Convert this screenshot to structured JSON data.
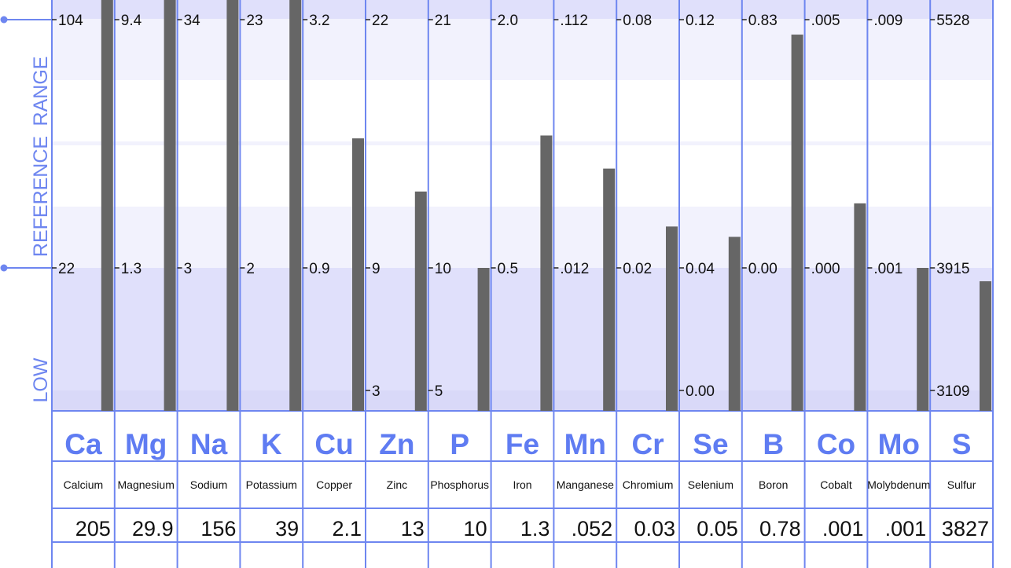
{
  "side_labels": {
    "low": "LOW",
    "reference": "REFERENCE",
    "range": "RANGE"
  },
  "colors": {
    "grid": "#6e86f0",
    "bar": "#666666",
    "symbol": "#5f7cf2",
    "band_low": "#e0e0fb",
    "band_light": "#f2f2fd",
    "band_white": "#ffffff"
  },
  "chart_data": {
    "type": "bar",
    "title": "",
    "xlabel": "",
    "ylabel": "",
    "elements": [
      {
        "symbol": "Ca",
        "name": "Calcium",
        "value": "205",
        "v": 205,
        "hi": "104",
        "hi_v": 104,
        "lo": "22",
        "lo_v": 22,
        "bottom": "",
        "bottom_v": null
      },
      {
        "symbol": "Mg",
        "name": "Magnesium",
        "value": "29.9",
        "v": 29.9,
        "hi": "9.4",
        "hi_v": 9.4,
        "lo": "1.3",
        "lo_v": 1.3,
        "bottom": "",
        "bottom_v": null
      },
      {
        "symbol": "Na",
        "name": "Sodium",
        "value": "156",
        "v": 156,
        "hi": "34",
        "hi_v": 34,
        "lo": "3",
        "lo_v": 3,
        "bottom": "",
        "bottom_v": null
      },
      {
        "symbol": "K",
        "name": "Potassium",
        "value": "39",
        "v": 39,
        "hi": "23",
        "hi_v": 23,
        "lo": "2",
        "lo_v": 2,
        "bottom": "",
        "bottom_v": null
      },
      {
        "symbol": "Cu",
        "name": "Copper",
        "value": "2.1",
        "v": 2.1,
        "hi": "3.2",
        "hi_v": 3.2,
        "lo": "0.9",
        "lo_v": 0.9,
        "bottom": "",
        "bottom_v": null
      },
      {
        "symbol": "Zn",
        "name": "Zinc",
        "value": "13",
        "v": 13,
        "hi": "22",
        "hi_v": 22,
        "lo": "9",
        "lo_v": 9,
        "bottom": "3",
        "bottom_v": 3
      },
      {
        "symbol": "P",
        "name": "Phosphorus",
        "value": "10",
        "v": 10,
        "hi": "21",
        "hi_v": 21,
        "lo": "10",
        "lo_v": 10,
        "bottom": "5",
        "bottom_v": 5
      },
      {
        "symbol": "Fe",
        "name": "Iron",
        "value": "1.3",
        "v": 1.3,
        "hi": "2.0",
        "hi_v": 2.0,
        "lo": "0.5",
        "lo_v": 0.5,
        "bottom": "",
        "bottom_v": null
      },
      {
        "symbol": "Mn",
        "name": "Manganese",
        "value": ".052",
        "v": 0.052,
        "hi": ".112",
        "hi_v": 0.112,
        "lo": ".012",
        "lo_v": 0.012,
        "bottom": "",
        "bottom_v": null
      },
      {
        "symbol": "Cr",
        "name": "Chromium",
        "value": "0.03",
        "v": 0.03,
        "hi": "0.08",
        "hi_v": 0.08,
        "lo": "0.02",
        "lo_v": 0.02,
        "bottom": "",
        "bottom_v": null
      },
      {
        "symbol": "Se",
        "name": "Selenium",
        "value": "0.05",
        "v": 0.05,
        "hi": "0.12",
        "hi_v": 0.12,
        "lo": "0.04",
        "lo_v": 0.04,
        "bottom": "0.00",
        "bottom_v": 0
      },
      {
        "symbol": "B",
        "name": "Boron",
        "value": "0.78",
        "v": 0.78,
        "hi": "0.83",
        "hi_v": 0.83,
        "lo": "0.00",
        "lo_v": 0,
        "bottom": "",
        "bottom_v": null
      },
      {
        "symbol": "Co",
        "name": "Cobalt",
        "value": ".001",
        "v": 0.0013,
        "hi": ".005",
        "hi_v": 0.005,
        "lo": ".000",
        "lo_v": 0,
        "bottom": "",
        "bottom_v": null
      },
      {
        "symbol": "Mo",
        "name": "Molybdenum",
        "value": ".001",
        "v": 0.001,
        "hi": ".009",
        "hi_v": 0.009,
        "lo": ".001",
        "lo_v": 0.001,
        "bottom": "",
        "bottom_v": null
      },
      {
        "symbol": "S",
        "name": "Sulfur",
        "value": "3827",
        "v": 3827,
        "hi": "5528",
        "hi_v": 5528,
        "lo": "3915",
        "lo_v": 3915,
        "bottom": "3109",
        "bottom_v": 3109
      }
    ]
  }
}
